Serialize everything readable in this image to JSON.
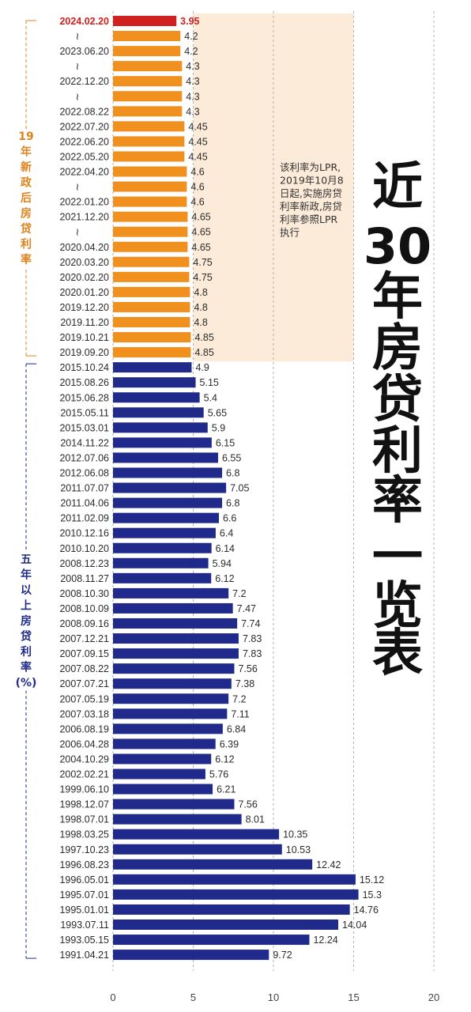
{
  "title_lines": [
    "近",
    "30",
    "年",
    "房",
    "贷",
    "利",
    "率",
    "一",
    "览",
    "表"
  ],
  "note_lines": [
    "该利率为LPR,",
    "2019年10月8",
    "日起,实施房贷",
    "利率新政,房贷",
    "利率参照LPR",
    "执行"
  ],
  "group_labels": {
    "new_policy": [
      "19",
      "年",
      "新",
      "政",
      "后",
      "房",
      "贷",
      "利",
      "率"
    ],
    "five_year": [
      "五",
      "年",
      "以",
      "上",
      "房",
      "贷",
      "利",
      "率",
      "(%)"
    ]
  },
  "colors": {
    "highlight": "#d0201f",
    "new_policy": "#f0901f",
    "five_year": "#1f2a8a",
    "note_bg": "#fcebd9",
    "group_label_new": "#e0821e",
    "group_label_old": "#1f2a8a"
  },
  "chart_data": {
    "type": "bar",
    "orientation": "horizontal",
    "xlim": [
      0,
      20
    ],
    "xticks": [
      0,
      5,
      10,
      15,
      20
    ],
    "categories": [
      "2024.02.20",
      "~",
      "2023.06.20",
      "~",
      "2022.12.20",
      "~",
      "2022.08.22",
      "2022.07.20",
      "2022.06.20",
      "2022.05.20",
      "2022.04.20",
      "~",
      "2022.01.20",
      "2021.12.20",
      "~",
      "2020.04.20",
      "2020.03.20",
      "2020.02.20",
      "2020.01.20",
      "2019.12.20",
      "2019.11.20",
      "2019.10.21",
      "2019.09.20",
      "2015.10.24",
      "2015.08.26",
      "2015.06.28",
      "2015.05.11",
      "2015.03.01",
      "2014.11.22",
      "2012.07.06",
      "2012.06.08",
      "2011.07.07",
      "2011.04.06",
      "2011.02.09",
      "2010.12.16",
      "2010.10.20",
      "2008.12.23",
      "2008.11.27",
      "2008.10.30",
      "2008.10.09",
      "2008.09.16",
      "2007.12.21",
      "2007.09.15",
      "2007.08.22",
      "2007.07.21",
      "2007.05.19",
      "2007.03.18",
      "2006.08.19",
      "2006.04.28",
      "2004.10.29",
      "2002.02.21",
      "1999.06.10",
      "1998.12.07",
      "1998.07.01",
      "1998.03.25",
      "1997.10.23",
      "1996.08.23",
      "1996.05.01",
      "1995.07.01",
      "1995.01.01",
      "1993.07.11",
      "1993.05.15",
      "1991.04.21"
    ],
    "value_labels": [
      "3.95",
      "4.2",
      "4.2",
      "4.3",
      "4.3",
      "4.3",
      "4.3",
      "4.45",
      "4.45",
      "4.45",
      "4.6",
      "4.6",
      "4.6",
      "4.65",
      "4.65",
      "4.65",
      "4.75",
      "4.75",
      "4.8",
      "4.8",
      "4.8",
      "4.85",
      "4.85",
      "4.9",
      "5.15",
      "5.4",
      "5.65",
      "5.9",
      "6.15",
      "6.55",
      "6.8",
      "7.05",
      "6.8",
      "6.6",
      "6.4",
      "6.14",
      "5.94",
      "6.12",
      "7.2",
      "7.47",
      "7.74",
      "7.83",
      "7.83",
      "7.56",
      "7.38",
      "7.2",
      "7.11",
      "6.84",
      "6.39",
      "6.12",
      "5.76",
      "6.21",
      "7.56",
      "8.01",
      "10.35",
      "10.53",
      "12.42",
      "15.12",
      "15.3",
      "14.76",
      "14.04",
      "12.24",
      "9.72"
    ],
    "values": [
      3.95,
      4.2,
      4.2,
      4.3,
      4.3,
      4.3,
      4.3,
      4.45,
      4.45,
      4.45,
      4.6,
      4.6,
      4.6,
      4.65,
      4.65,
      4.65,
      4.75,
      4.75,
      4.8,
      4.8,
      4.8,
      4.85,
      4.85,
      4.9,
      5.15,
      5.4,
      5.65,
      5.9,
      6.15,
      6.55,
      6.8,
      7.05,
      6.8,
      6.6,
      6.4,
      6.14,
      5.94,
      6.12,
      7.2,
      7.47,
      7.74,
      7.83,
      7.83,
      7.56,
      7.38,
      7.2,
      7.11,
      6.84,
      6.39,
      6.12,
      5.76,
      6.21,
      7.56,
      8.01,
      10.35,
      10.53,
      12.42,
      15.12,
      15.3,
      14.76,
      14.04,
      12.24,
      9.72
    ],
    "groups": {
      "highlight": [
        0
      ],
      "new_policy_range": [
        1,
        22
      ],
      "five_year_range": [
        23,
        62
      ]
    },
    "grid": "dashed vertical lines at ticks"
  }
}
